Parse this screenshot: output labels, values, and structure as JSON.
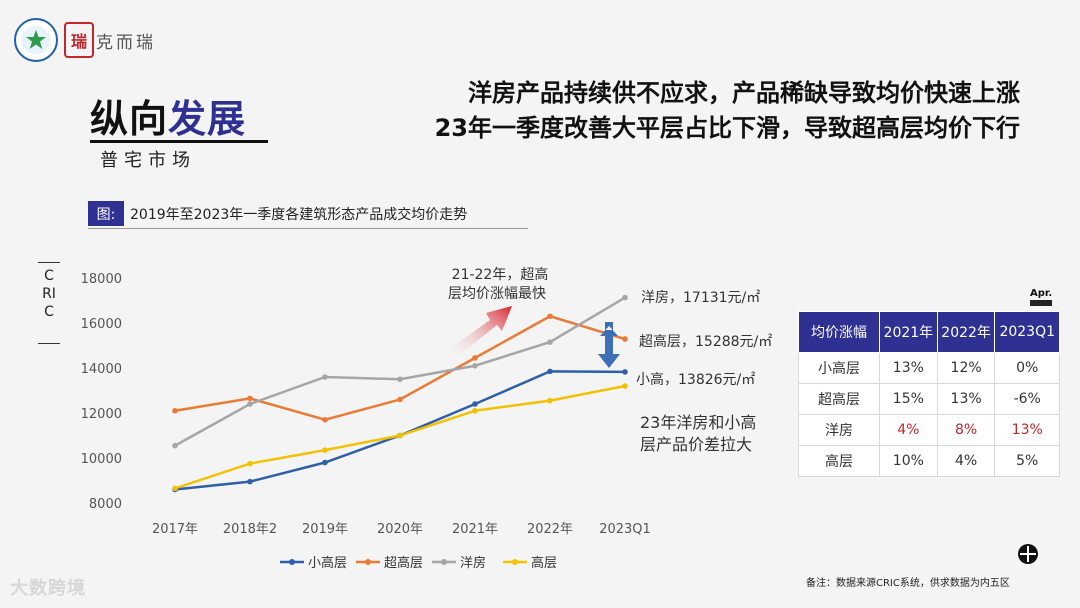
{
  "header": {
    "brand": "克而瑞",
    "seal_char": "瑞"
  },
  "section": {
    "title_plain": "纵向",
    "title_highlight": "发展",
    "subtitle": "普宅市场"
  },
  "headline": {
    "line1": "洋房产品持续供不应求，产品稀缺导致均价快速上涨",
    "line2": "23年一季度改善大平层占比下滑，导致超高层均价下行"
  },
  "figure": {
    "tag": "图:",
    "caption": "2019年至2023年一季度各建筑形态产品成交均价走势",
    "cric": "CRIC"
  },
  "chart_data": {
    "type": "line",
    "categories": [
      "2017年",
      "2018年2",
      "2019年",
      "2020年",
      "2021年",
      "2022年",
      "2023Q1"
    ],
    "ylim": [
      8000,
      18000
    ],
    "yticks": [
      8000,
      10000,
      12000,
      14000,
      16000,
      18000
    ],
    "series": [
      {
        "name": "小高层",
        "color": "#2e5fa8",
        "values": [
          8600,
          8950,
          9800,
          11000,
          12400,
          13850,
          13826
        ]
      },
      {
        "name": "超高层",
        "color": "#ea7a34",
        "values": [
          12100,
          12650,
          11700,
          12600,
          14450,
          16300,
          15288
        ]
      },
      {
        "name": "洋房",
        "color": "#a6a6a6",
        "values": [
          10550,
          12400,
          13600,
          13500,
          14100,
          15150,
          17131
        ]
      },
      {
        "name": "高层",
        "color": "#f2c200",
        "values": [
          8650,
          9750,
          10350,
          11000,
          12100,
          12550,
          13200
        ]
      }
    ],
    "annotations": {
      "yangfang_label": "洋房，17131元/㎡",
      "chaogao_label": "超高层，15288元/㎡",
      "xiaogao_label": "小高，13826元/㎡",
      "arrow_text_1": "21-22年，超高",
      "arrow_text_2": "层均价涨幅最快",
      "gap_text_1": "23年洋房和小高",
      "gap_text_2": "层产品价差拉大"
    }
  },
  "table": {
    "headers": [
      "均价涨幅",
      "2021年",
      "2022年",
      "2023Q1"
    ],
    "rows": [
      {
        "label": "小高层",
        "cells": [
          "13%",
          "12%",
          "0%"
        ],
        "highlight": false
      },
      {
        "label": "超高层",
        "cells": [
          "15%",
          "13%",
          "-6%"
        ],
        "highlight": false
      },
      {
        "label": "洋房",
        "cells": [
          "4%",
          "8%",
          "13%"
        ],
        "highlight": true
      },
      {
        "label": "高层",
        "cells": [
          "10%",
          "4%",
          "5%"
        ],
        "highlight": false
      }
    ]
  },
  "apr_tag": "Apr.",
  "footnote": "备注：数据来源CRIC系统，供求数据为内五区",
  "watermark": "大数跨境",
  "colors": {
    "accent": "#2e3192",
    "red": "#c2272d"
  }
}
